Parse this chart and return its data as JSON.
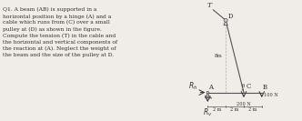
{
  "bg_color": "#f0ede8",
  "text_color": "#2a2a2a",
  "title_text": "Q1. A beam (AB) is supported in a\nhorizontal position by a hinge (A) and a\ncable which runs from (C) over a small\npulley at (D) as shown in the figure.\nCompute the tension (T) in the cable and\nthe horizontal and vertical components of\nthe reaction at (A). Neglect the weight of\nthe beam and the size of the pulley at D.",
  "A": [
    0.0,
    0.0
  ],
  "B": [
    6.0,
    0.0
  ],
  "C": [
    4.0,
    0.0
  ],
  "D": [
    2.0,
    8.0
  ],
  "beam_color": "#555555",
  "cable_color": "#555555",
  "dim_color": "#333333",
  "force_color": "#333333",
  "label_fontsize": 5.5,
  "dim_label_fontsize": 4.5
}
